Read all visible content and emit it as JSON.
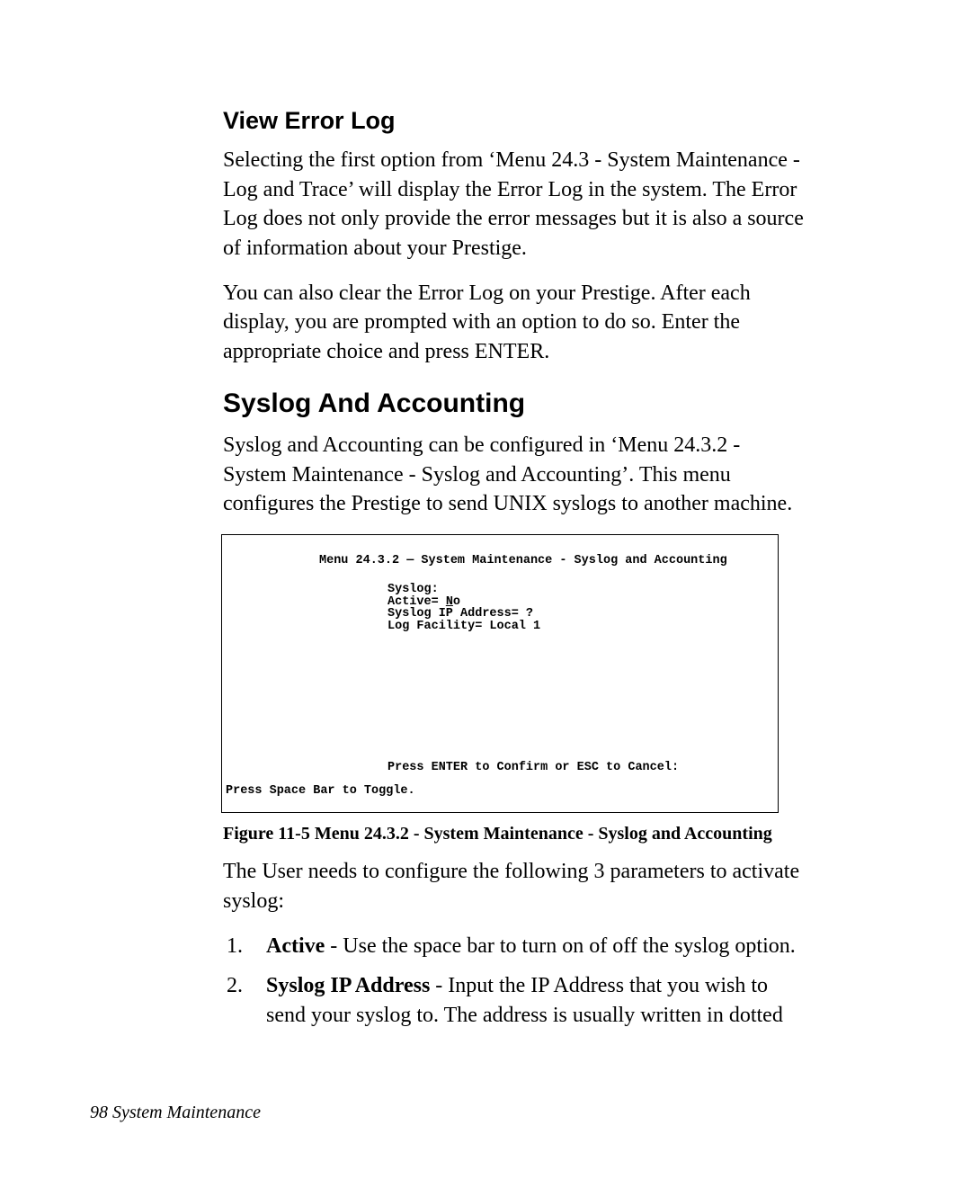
{
  "section1": {
    "heading": "View Error Log",
    "para1": "Selecting the first option from ‘Menu 24.3 - System Maintenance - Log and Trace’ will display the Error Log in the system. The Error Log does not only provide the error messages but it is also a source of information about your Prestige.",
    "para2": "You can also clear the Error Log on your Prestige. After each display, you are prompted with an option to do so. Enter the appropriate choice and press ENTER."
  },
  "section2": {
    "heading": "Syslog And Accounting",
    "para1": "Syslog and Accounting can be configured in ‘Menu 24.3.2 - System Maintenance - Syslog and Accounting’. This menu configures the Prestige to send UNIX syslogs to another machine."
  },
  "figure": {
    "title_prefix": "Menu 24.3.2 ",
    "title_dash": "—",
    "title_suffix": " System Maintenance - Syslog and Accounting",
    "body_line1": "Syslog:",
    "body_line2_prefix": "Active= ",
    "body_line2_value_u": "N",
    "body_line2_value_rest": "o",
    "body_line3": "Syslog IP Address= ?",
    "body_line4": "Log Facility= Local 1",
    "confirm": "Press ENTER to Confirm or ESC to Cancel:",
    "footer": "Press Space Bar to Toggle.",
    "caption": "Figure 11-5 Menu 24.3.2 - System Maintenance - Syslog and Accounting"
  },
  "after_figure": {
    "para": "The User needs to configure the following 3 parameters to activate syslog:"
  },
  "list": {
    "item1_bold": "Active",
    "item1_rest": " - Use the space bar to turn on of off the syslog option.",
    "item2_bold": "Syslog IP Address",
    "item2_rest": " - Input the IP Address that you wish to send your syslog to. The address is usually written in dotted"
  },
  "footer": {
    "page_number": "98",
    "label": "  System Maintenance"
  }
}
